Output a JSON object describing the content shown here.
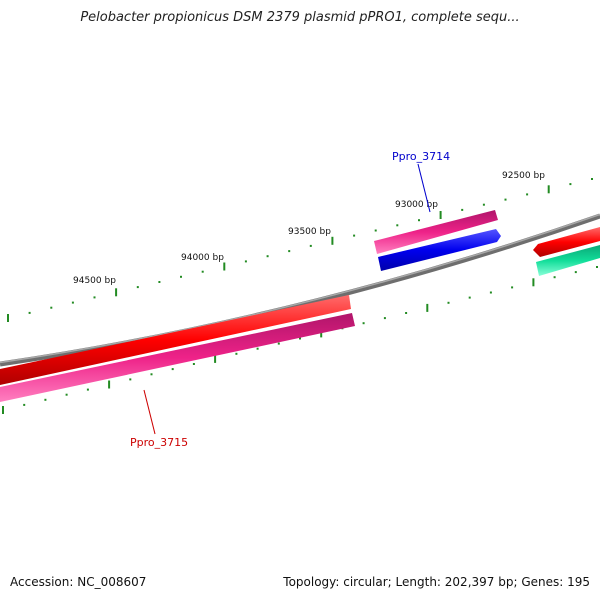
{
  "title": "Pelobacter propionicus DSM 2379 plasmid pPRO1, complete sequ...",
  "footer": {
    "accession": "Accession: NC_008607",
    "info": "Topology: circular; Length: 202,397 bp; Genes: 195"
  },
  "tick_labels": [
    "92500 bp",
    "93000 bp",
    "93500 bp",
    "94000 bp",
    "94500 bp"
  ],
  "genes": [
    {
      "name": "Ppro_3714",
      "color": "#0000cc"
    },
    {
      "name": "Ppro_3715",
      "color": "#cc0000"
    }
  ],
  "colors": {
    "backbone": "#808080",
    "tick": "#228B22",
    "red_feature": "#ff0000",
    "pink_feature": "#ee2288",
    "blue_feature": "#0000ee",
    "green_feature": "#11dd99"
  }
}
